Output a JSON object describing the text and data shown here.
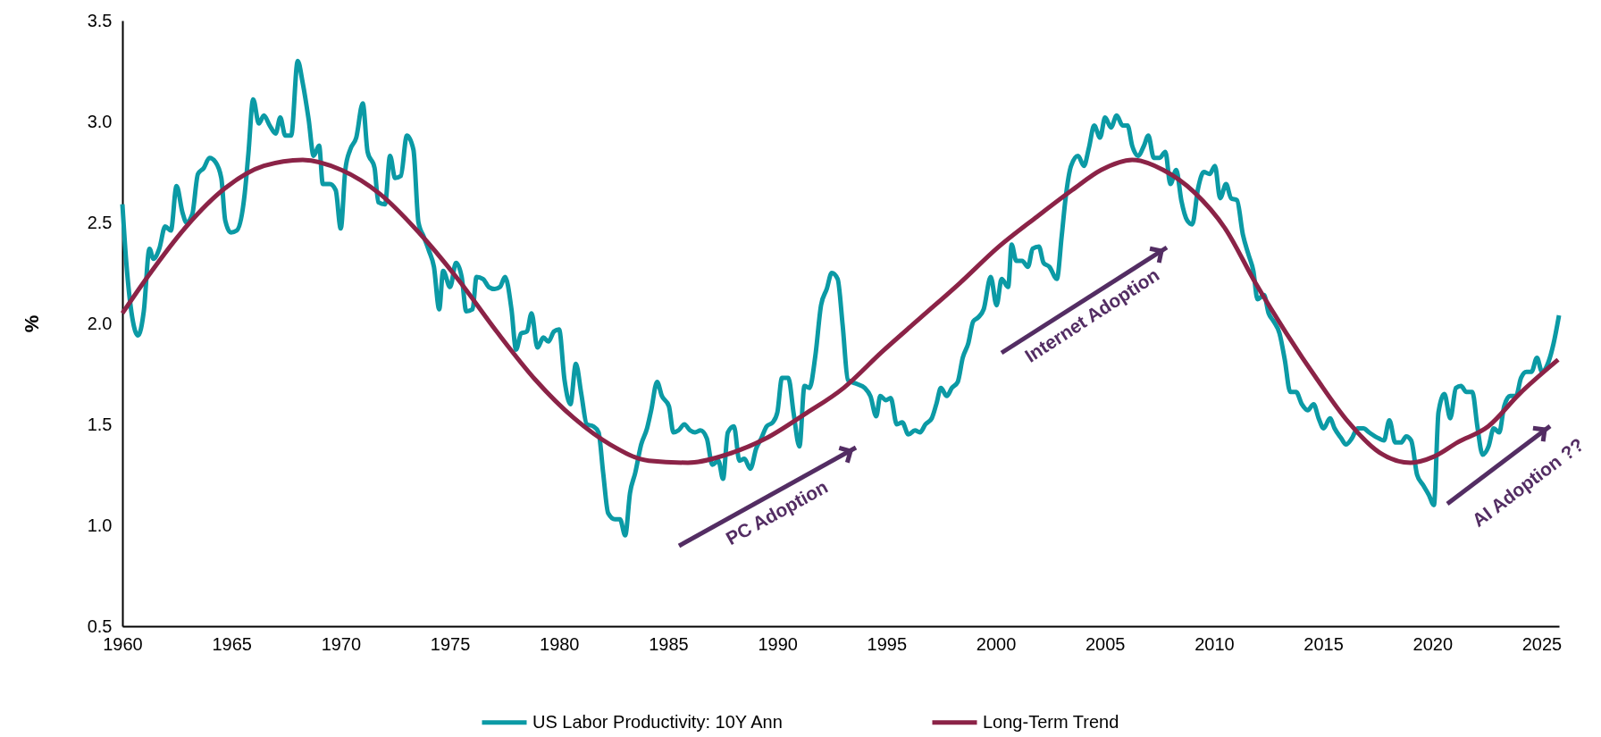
{
  "chart_data": {
    "type": "line",
    "ylabel": "%",
    "xlim": [
      1960,
      2025.8
    ],
    "xticks": [
      1960,
      1965,
      1970,
      1975,
      1980,
      1985,
      1990,
      1995,
      2000,
      2005,
      2010,
      2015,
      2020,
      2025
    ],
    "ylim": [
      0.5,
      3.5
    ],
    "yticks": [
      0.5,
      {
        "value": 1,
        "label": "1.0"
      },
      1.5,
      {
        "value": 2,
        "label": "2.0"
      },
      2.5,
      {
        "value": 3,
        "label": "3.0"
      },
      3.5
    ],
    "grid": false,
    "legend": "bottom",
    "line_style": "solid",
    "series": [
      {
        "name": "US Labor Productivity: 10Y Ann",
        "color": "#0b9aa5",
        "x": [
          1960.0,
          1960.18,
          1960.72,
          1960.98,
          1961.24,
          1961.42,
          1961.69,
          1961.96,
          1962.22,
          1962.48,
          1962.75,
          1962.93,
          1963.2,
          1963.46,
          1963.73,
          1963.99,
          1964.26,
          1964.53,
          1964.71,
          1964.97,
          1965.24,
          1965.6,
          1965.77,
          1965.99,
          1966.25,
          1966.48,
          1966.75,
          1967.02,
          1967.23,
          1967.46,
          1967.73,
          1968.03,
          1968.26,
          1968.53,
          1968.76,
          1969.01,
          1969.18,
          1969.5,
          1969.77,
          1970.0,
          1970.21,
          1970.43,
          1970.71,
          1971.01,
          1971.23,
          1971.55,
          1971.72,
          1972.03,
          1972.26,
          1972.49,
          1972.75,
          1973.03,
          1973.33,
          1973.56,
          1973.8,
          1974.04,
          1974.27,
          1974.51,
          1974.69,
          1975.01,
          1975.28,
          1975.54,
          1975.75,
          1976.04,
          1976.22,
          1976.52,
          1976.78,
          1977.05,
          1977.29,
          1977.53,
          1977.82,
          1978.03,
          1978.26,
          1978.53,
          1978.74,
          1979.01,
          1979.28,
          1979.51,
          1979.77,
          1980.0,
          1980.25,
          1980.52,
          1980.77,
          1981.02,
          1981.27,
          1981.57,
          1981.81,
          1982.02,
          1982.25,
          1982.56,
          1982.79,
          1983.03,
          1983.25,
          1983.49,
          1983.76,
          1984.03,
          1984.22,
          1984.49,
          1984.71,
          1985.03,
          1985.24,
          1985.47,
          1985.74,
          1986.0,
          1986.23,
          1986.48,
          1986.77,
          1987.02,
          1987.3,
          1987.51,
          1987.73,
          1988.01,
          1988.26,
          1988.49,
          1988.76,
          1989.03,
          1989.26,
          1989.51,
          1989.79,
          1990.0,
          1990.21,
          1990.5,
          1990.75,
          1991.01,
          1991.24,
          1991.47,
          1991.74,
          1992.0,
          1992.26,
          1992.49,
          1992.76,
          1992.99,
          1993.23,
          1993.64,
          1994.0,
          1994.26,
          1994.53,
          1994.71,
          1994.97,
          1995.19,
          1995.47,
          1995.72,
          1996.0,
          1996.3,
          1996.53,
          1996.78,
          1997.07,
          1997.28,
          1997.49,
          1997.76,
          1997.99,
          1998.26,
          1998.49,
          1998.74,
          1998.97,
          1999.2,
          1999.45,
          1999.77,
          2000.04,
          2000.27,
          2000.57,
          2000.73,
          2000.94,
          2001.21,
          2001.48,
          2001.69,
          2001.98,
          2002.19,
          2002.46,
          2002.8,
          2003.02,
          2003.2,
          2003.45,
          2003.77,
          2004.04,
          2004.27,
          2004.51,
          2004.78,
          2005.01,
          2005.28,
          2005.54,
          2005.81,
          2006.04,
          2006.25,
          2006.52,
          2006.79,
          2006.99,
          2007.24,
          2007.51,
          2007.77,
          2008.0,
          2008.27,
          2008.5,
          2008.77,
          2009.0,
          2009.27,
          2009.53,
          2009.8,
          2010.04,
          2010.28,
          2010.55,
          2010.78,
          2011.05,
          2011.32,
          2011.58,
          2011.8,
          2011.99,
          2012.29,
          2012.5,
          2012.73,
          2013.0,
          2013.24,
          2013.49,
          2013.76,
          2014.02,
          2014.29,
          2014.56,
          2014.79,
          2015.02,
          2015.31,
          2015.52,
          2015.83,
          2016.04,
          2016.31,
          2016.57,
          2016.84,
          2017.1,
          2017.55,
          2017.78,
          2018.03,
          2018.3,
          2018.57,
          2018.8,
          2019.03,
          2019.3,
          2019.57,
          2019.84,
          2020.07,
          2020.28,
          2020.55,
          2020.82,
          2021.08,
          2021.31,
          2021.56,
          2021.83,
          2022.06,
          2022.3,
          2022.57,
          2022.81,
          2023.06,
          2023.29,
          2023.56,
          2023.83,
          2024.06,
          2024.31,
          2024.54,
          2024.79,
          2025.02,
          2025.32,
          2025.55,
          2025.8
        ],
        "values": [
          2.59,
          2.3,
          1.94,
          2.06,
          2.37,
          2.32,
          2.37,
          2.48,
          2.46,
          2.68,
          2.55,
          2.5,
          2.54,
          2.74,
          2.77,
          2.82,
          2.8,
          2.72,
          2.51,
          2.45,
          2.46,
          2.64,
          2.84,
          3.11,
          2.99,
          3.03,
          2.98,
          2.94,
          3.02,
          2.93,
          2.93,
          3.3,
          3.19,
          3.01,
          2.83,
          2.88,
          2.69,
          2.69,
          2.66,
          2.47,
          2.76,
          2.86,
          2.92,
          3.09,
          2.85,
          2.77,
          2.6,
          2.59,
          2.83,
          2.72,
          2.73,
          2.93,
          2.86,
          2.5,
          2.43,
          2.36,
          2.28,
          2.07,
          2.26,
          2.18,
          2.3,
          2.23,
          2.06,
          2.07,
          2.23,
          2.22,
          2.18,
          2.17,
          2.18,
          2.23,
          2.07,
          1.87,
          1.95,
          1.96,
          2.05,
          1.88,
          1.93,
          1.91,
          1.96,
          1.97,
          1.72,
          1.6,
          1.8,
          1.65,
          1.5,
          1.49,
          1.46,
          1.26,
          1.06,
          1.03,
          1.03,
          0.95,
          1.16,
          1.26,
          1.4,
          1.48,
          1.57,
          1.71,
          1.64,
          1.59,
          1.46,
          1.47,
          1.5,
          1.47,
          1.46,
          1.47,
          1.43,
          1.3,
          1.32,
          1.23,
          1.46,
          1.49,
          1.32,
          1.33,
          1.28,
          1.38,
          1.43,
          1.49,
          1.51,
          1.56,
          1.73,
          1.73,
          1.55,
          1.39,
          1.69,
          1.68,
          1.84,
          2.09,
          2.17,
          2.25,
          2.22,
          1.99,
          1.72,
          1.7,
          1.68,
          1.64,
          1.54,
          1.64,
          1.62,
          1.63,
          1.5,
          1.51,
          1.45,
          1.47,
          1.46,
          1.5,
          1.53,
          1.6,
          1.68,
          1.64,
          1.68,
          1.71,
          1.83,
          1.9,
          2.01,
          2.03,
          2.07,
          2.23,
          2.09,
          2.22,
          2.18,
          2.39,
          2.31,
          2.31,
          2.28,
          2.37,
          2.38,
          2.3,
          2.28,
          2.22,
          2.43,
          2.62,
          2.78,
          2.83,
          2.78,
          2.87,
          2.98,
          2.92,
          3.02,
          2.97,
          3.03,
          2.98,
          2.98,
          2.88,
          2.83,
          2.88,
          2.93,
          2.82,
          2.82,
          2.85,
          2.69,
          2.76,
          2.61,
          2.51,
          2.49,
          2.67,
          2.75,
          2.74,
          2.78,
          2.62,
          2.69,
          2.62,
          2.61,
          2.44,
          2.34,
          2.26,
          2.12,
          2.14,
          2.05,
          2.01,
          1.95,
          1.82,
          1.66,
          1.66,
          1.6,
          1.57,
          1.6,
          1.53,
          1.48,
          1.53,
          1.48,
          1.43,
          1.4,
          1.43,
          1.48,
          1.48,
          1.46,
          1.43,
          1.42,
          1.52,
          1.41,
          1.41,
          1.44,
          1.42,
          1.25,
          1.2,
          1.15,
          1.1,
          1.56,
          1.65,
          1.53,
          1.68,
          1.69,
          1.66,
          1.66,
          1.49,
          1.35,
          1.39,
          1.48,
          1.46,
          1.59,
          1.64,
          1.64,
          1.73,
          1.76,
          1.76,
          1.83,
          1.76,
          1.81,
          1.9,
          2.04
        ]
      },
      {
        "name": "Long-Term Trend",
        "color": "#8b2347",
        "x": [
          1960.0,
          1961.15,
          1962.93,
          1964.71,
          1966.48,
          1968.26,
          1970.03,
          1971.81,
          1973.58,
          1975.36,
          1977.14,
          1978.92,
          1980.69,
          1982.34,
          1984.11,
          1985.9,
          1987.67,
          1989.47,
          1991.25,
          1993.03,
          1994.8,
          1996.58,
          1998.36,
          2000.14,
          2001.91,
          2003.5,
          2004.83,
          2006.25,
          2007.67,
          2009.09,
          2010.51,
          2011.9,
          2013.32,
          2014.74,
          2016.16,
          2017.58,
          2019.0,
          2020.07,
          2021.14,
          2022.56,
          2023.98,
          2025.76
        ],
        "values": [
          2.05,
          2.23,
          2.48,
          2.67,
          2.78,
          2.81,
          2.76,
          2.64,
          2.45,
          2.22,
          1.96,
          1.72,
          1.53,
          1.4,
          1.32,
          1.31,
          1.35,
          1.43,
          1.55,
          1.68,
          1.86,
          2.03,
          2.2,
          2.38,
          2.53,
          2.66,
          2.76,
          2.81,
          2.76,
          2.65,
          2.47,
          2.2,
          1.95,
          1.72,
          1.51,
          1.36,
          1.31,
          1.34,
          1.41,
          1.49,
          1.65,
          1.82
        ]
      }
    ],
    "annotations": [
      "PC Adoption",
      "Internet Adoption",
      "AI Adoption ??"
    ]
  }
}
